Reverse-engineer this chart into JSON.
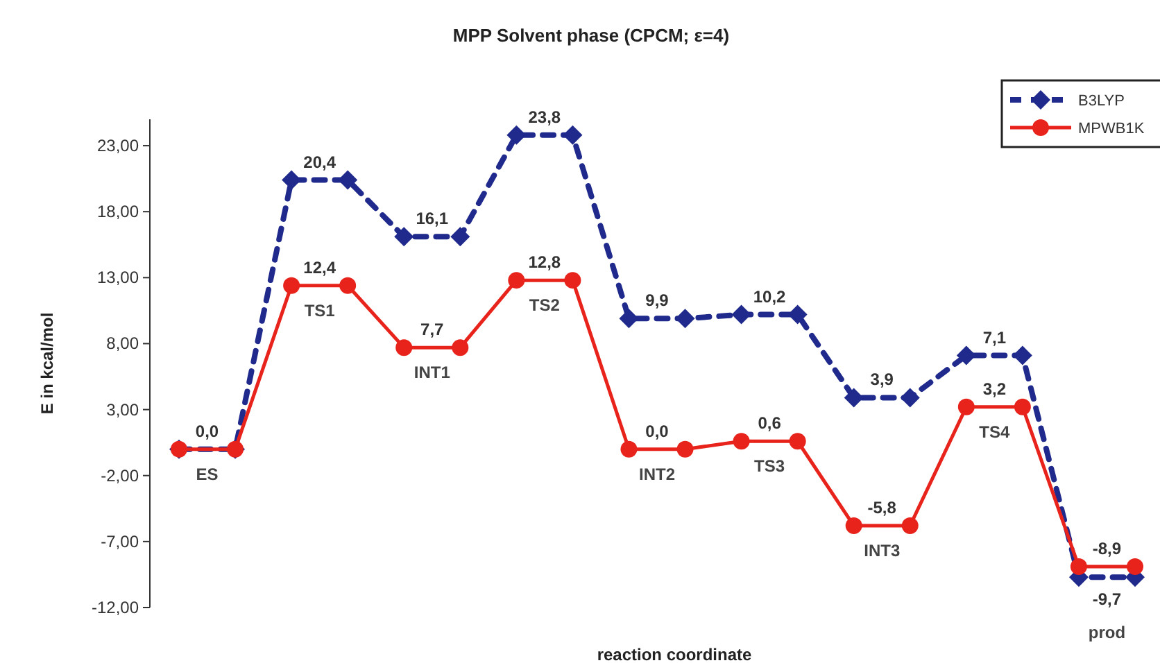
{
  "chart_data": {
    "type": "line",
    "title": "MPP Solvent phase (CPCM; ε=4)",
    "xlabel": "reaction coordinate",
    "ylabel": "E in kcal/mol",
    "categories": [
      null,
      null,
      null,
      null,
      null,
      null,
      null,
      null,
      null,
      null,
      null,
      null,
      null,
      null,
      null,
      null,
      null,
      null
    ],
    "series": [
      {
        "name": "B3LYP",
        "color": "#1f2a8c",
        "marker": "diamond",
        "line_style": "dashed",
        "values": [
          0,
          0,
          20.4,
          20.4,
          16.1,
          16.1,
          23.8,
          23.8,
          9.9,
          9.9,
          10.2,
          10.2,
          3.9,
          3.9,
          7.1,
          7.1,
          -9.7,
          -9.7
        ],
        "value_labels": [
          null,
          null,
          "20,4",
          null,
          "16,1",
          null,
          "23,8",
          null,
          "9,9",
          null,
          "10,2",
          null,
          "3,9",
          null,
          "7,1",
          null,
          "-9,7",
          null
        ]
      },
      {
        "name": "MPWB1K",
        "color": "#e8231b",
        "marker": "circle",
        "line_style": "solid",
        "values": [
          0,
          0,
          12.4,
          12.4,
          7.7,
          7.7,
          12.8,
          12.8,
          0,
          0,
          0.6,
          0.6,
          -5.8,
          -5.8,
          3.2,
          3.2,
          -8.9,
          -8.9
        ],
        "value_labels": [
          "0,0",
          null,
          "12,4",
          null,
          "7,7",
          null,
          "12,8",
          null,
          "0,0",
          null,
          "0,6",
          null,
          "-5,8",
          null,
          "3,2",
          null,
          "-8,9",
          null
        ]
      }
    ],
    "annotations": [
      "ES",
      "TS1",
      "INT1",
      "TS2",
      "INT2",
      "TS3",
      "INT3",
      "TS4",
      "prod"
    ],
    "ylim": [
      -12,
      25
    ],
    "yticks": [
      {
        "value": -12,
        "label": "-12,00"
      },
      {
        "value": -7,
        "label": "-7,00"
      },
      {
        "value": -2,
        "label": "-2,00"
      },
      {
        "value": 3,
        "label": "3,00"
      },
      {
        "value": 8,
        "label": "8,00"
      },
      {
        "value": 13,
        "label": "13,00"
      },
      {
        "value": 18,
        "label": "18,00"
      },
      {
        "value": 23,
        "label": "23,00"
      }
    ],
    "tick_labels": "y",
    "grid": false,
    "legend": "top right"
  }
}
